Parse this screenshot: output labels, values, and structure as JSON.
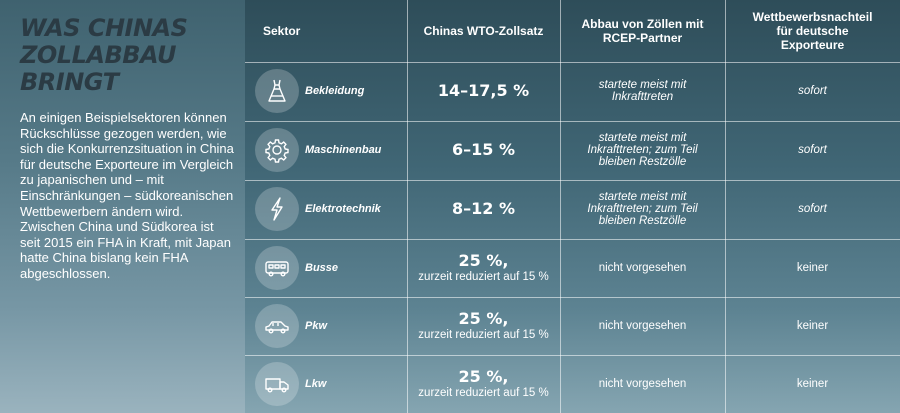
{
  "title": {
    "lines": [
      "WAS CHINAS",
      "ZOLLABBAU",
      "BRINGT"
    ]
  },
  "intro": "An einigen Beispielsektoren können Rückschlüsse gezogen werden, wie sich die Konkurrenzsituation in China für deutsche Exporteure im Vergleich zu japanischen und – mit Einschränkungen – südkoreanischen Wettbewerbern ändern wird. Zwischen China und Südkorea ist seit 2015 ein FHA in Kraft, mit Japan hatte China bislang kein FHA abgeschlossen.",
  "headers": {
    "sector": "Sektor",
    "wto": "Chinas WTO-Zollsatz",
    "rcep": "Abbau von Zöllen mit RCEP-Partner",
    "disadvantage": "Wettbewerbsnachteil für deutsche Exporteure"
  },
  "rows": [
    {
      "icon": "dress-icon",
      "name": "Bekleidung",
      "rate": "14–17,5 %",
      "rate_note": "",
      "rcep": "startete meist mit Inkrafttreten",
      "disadvantage": "sofort"
    },
    {
      "icon": "gear-icon",
      "name": "Maschinenbau",
      "rate": "6–15 %",
      "rate_note": "",
      "rcep": "startete meist mit Inkrafttreten; zum Teil bleiben Restzölle",
      "disadvantage": "sofort"
    },
    {
      "icon": "lightning-icon",
      "name": "Elektrotechnik",
      "rate": "8–12 %",
      "rate_note": "",
      "rcep": "startete meist mit Inkrafttreten; zum Teil bleiben Restzölle",
      "disadvantage": "sofort"
    },
    {
      "icon": "bus-icon",
      "name": "Busse",
      "rate": "25 %,",
      "rate_note": "zurzeit reduziert auf 15 %",
      "rcep": "nicht vorgesehen",
      "disadvantage": "keiner"
    },
    {
      "icon": "car-icon",
      "name": "Pkw",
      "rate": "25 %,",
      "rate_note": "zurzeit reduziert auf 15 %",
      "rcep": "nicht vorgesehen",
      "disadvantage": "keiner"
    },
    {
      "icon": "truck-icon",
      "name": "Lkw",
      "rate": "25 %,",
      "rate_note": "zurzeit reduziert auf 15 %",
      "rcep": "nicht vorgesehen",
      "disadvantage": "keiner"
    }
  ]
}
